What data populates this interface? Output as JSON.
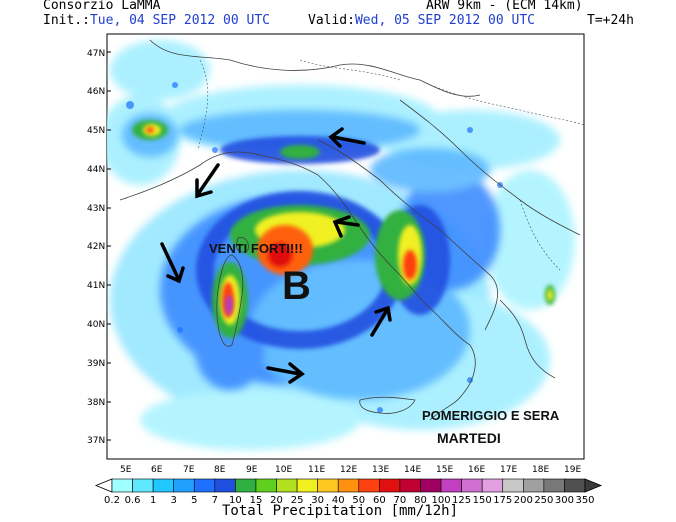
{
  "header": {
    "producer": "Consorzio LaMMA",
    "model": "ARW 9km - (ECM 14km)",
    "init_label": "Init.:",
    "init_value": "Tue, 04 SEP 2012  00 UTC",
    "valid_label": "Valid:",
    "valid_value": "Wed, 05 SEP 2012  00 UTC",
    "lead": "T=+24h"
  },
  "axes": {
    "lat_labels": [
      "47N",
      "46N",
      "45N",
      "44N",
      "43N",
      "42N",
      "41N",
      "40N",
      "39N",
      "38N",
      "37N"
    ],
    "lon_labels": [
      "5E",
      "6E",
      "7E",
      "8E",
      "9E",
      "10E",
      "11E",
      "12E",
      "13E",
      "14E",
      "15E",
      "16E",
      "17E",
      "18E",
      "19E"
    ]
  },
  "annotations": {
    "winds": "VENTI FORTI!!!",
    "low": "B",
    "period_line1": "POMERIGGIO E SERA",
    "period_line2": "MARTEDI"
  },
  "legend": {
    "title": "Total Precipitation [mm/12h]",
    "values": [
      "0.2",
      "0.6",
      "1",
      "3",
      "5",
      "7",
      "10",
      "15",
      "20",
      "25",
      "30",
      "40",
      "50",
      "60",
      "70",
      "80",
      "100",
      "125",
      "150",
      "175",
      "200",
      "250",
      "300",
      "350"
    ],
    "colors": [
      "#a0ffff",
      "#60e8ff",
      "#20c8ff",
      "#20a0ff",
      "#2070ff",
      "#2050e0",
      "#30b040",
      "#60d020",
      "#b0e020",
      "#f0f020",
      "#ffc820",
      "#ff9010",
      "#ff4010",
      "#e01010",
      "#c00030",
      "#a00060",
      "#c040c0",
      "#d070d0",
      "#e0a0e0",
      "#c8c8c8",
      "#a0a0a0",
      "#787878",
      "#505050"
    ]
  }
}
